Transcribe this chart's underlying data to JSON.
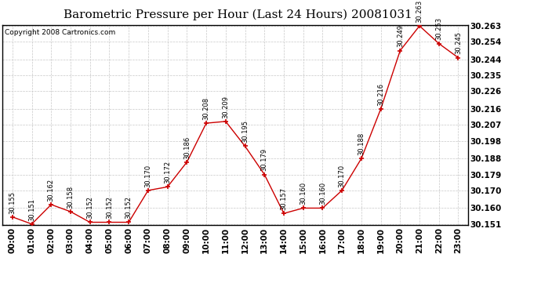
{
  "title": "Barometric Pressure per Hour (Last 24 Hours) 20081031",
  "copyright": "Copyright 2008 Cartronics.com",
  "hours": [
    "00:00",
    "01:00",
    "02:00",
    "03:00",
    "04:00",
    "05:00",
    "06:00",
    "07:00",
    "08:00",
    "09:00",
    "10:00",
    "11:00",
    "12:00",
    "13:00",
    "14:00",
    "15:00",
    "16:00",
    "17:00",
    "18:00",
    "19:00",
    "20:00",
    "21:00",
    "22:00",
    "23:00"
  ],
  "values": [
    30.155,
    30.151,
    30.162,
    30.158,
    30.152,
    30.152,
    30.152,
    30.17,
    30.172,
    30.186,
    30.208,
    30.209,
    30.195,
    30.179,
    30.157,
    30.16,
    30.16,
    30.17,
    30.188,
    30.216,
    30.249,
    30.263,
    30.253,
    30.245
  ],
  "ylim_min": 30.151,
  "ylim_max": 30.263,
  "yticks": [
    30.151,
    30.16,
    30.17,
    30.179,
    30.188,
    30.198,
    30.207,
    30.216,
    30.226,
    30.235,
    30.244,
    30.254,
    30.263
  ],
  "line_color": "#cc0000",
  "marker_color": "#cc0000",
  "bg_color": "#ffffff",
  "plot_bg_color": "#ffffff",
  "grid_color": "#c8c8c8",
  "title_fontsize": 11,
  "copyright_fontsize": 6.5,
  "label_fontsize": 6.0,
  "tick_fontsize": 7.5
}
